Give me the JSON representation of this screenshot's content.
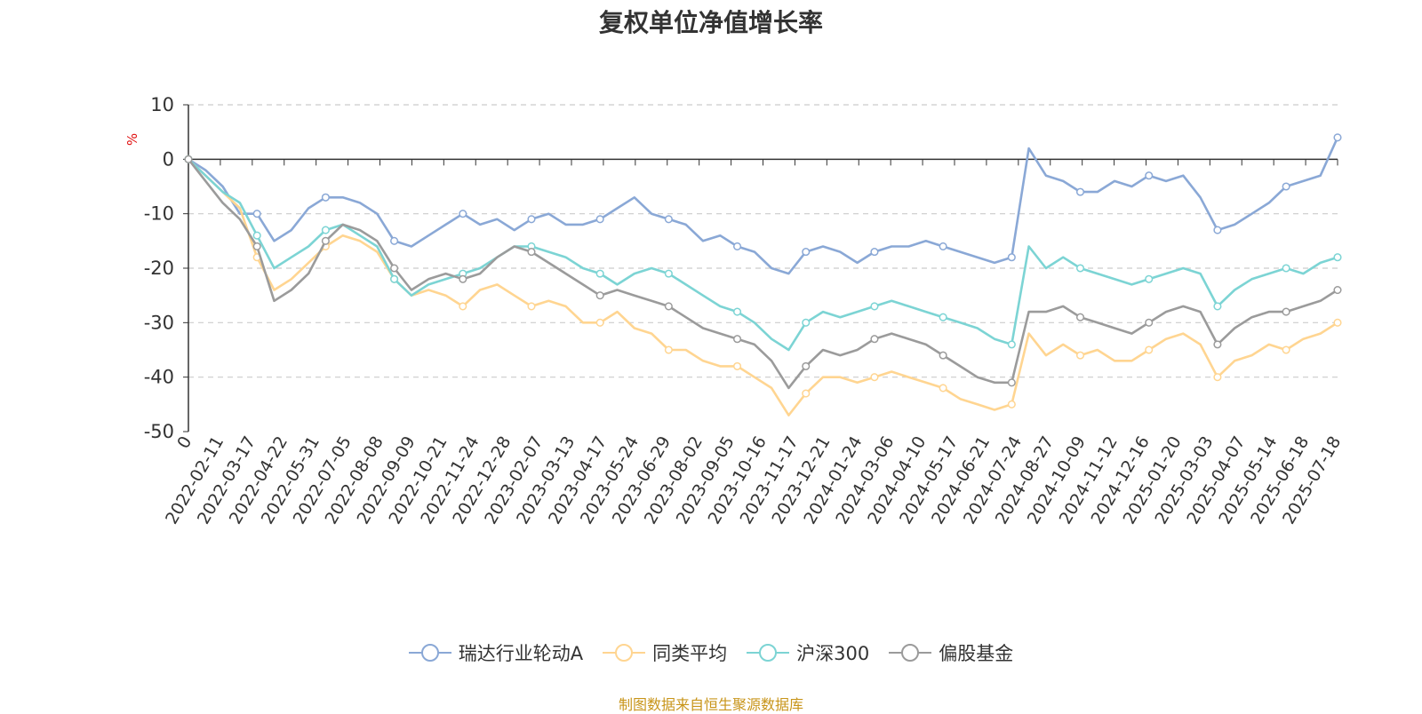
{
  "title": "复权单位净值增长率",
  "source_note": "制图数据来自恒生聚源数据库",
  "chart_data": {
    "type": "line",
    "title": "复权单位净值增长率",
    "ylabel": "%",
    "ylim": [
      -50,
      10
    ],
    "yticks": [
      10,
      0,
      -10,
      -20,
      -30,
      -40,
      -50
    ],
    "grid": true,
    "legend_position": "bottom",
    "x_tick_labels": [
      "0",
      "2022-02-11",
      "2022-03-17",
      "2022-04-22",
      "2022-05-31",
      "2022-07-05",
      "2022-08-08",
      "2022-09-09",
      "2022-10-21",
      "2022-11-24",
      "2022-12-28",
      "2023-02-07",
      "2023-03-13",
      "2023-04-17",
      "2023-05-24",
      "2023-06-29",
      "2023-08-02",
      "2023-09-05",
      "2023-10-16",
      "2023-11-17",
      "2023-12-21",
      "2024-01-24",
      "2024-03-06",
      "2024-04-10",
      "2024-05-17",
      "2024-06-21",
      "2024-07-24",
      "2024-08-27",
      "2024-10-09",
      "2024-11-12",
      "2024-12-16",
      "2025-01-20",
      "2025-03-03",
      "2025-04-07",
      "2025-05-14",
      "2025-06-18",
      "2025-07-18"
    ],
    "series": [
      {
        "name": "瑞达行业轮动A",
        "color": "#8aa8d6",
        "values": [
          0,
          -2,
          -5,
          -10,
          -10,
          -15,
          -13,
          -9,
          -7,
          -7,
          -8,
          -10,
          -15,
          -16,
          -14,
          -12,
          -10,
          -12,
          -11,
          -13,
          -11,
          -10,
          -12,
          -12,
          -11,
          -9,
          -7,
          -10,
          -11,
          -12,
          -15,
          -14,
          -16,
          -17,
          -20,
          -21,
          -17,
          -16,
          -17,
          -19,
          -17,
          -16,
          -16,
          -15,
          -16,
          -17,
          -18,
          -19,
          -18,
          2,
          -3,
          -4,
          -6,
          -6,
          -4,
          -5,
          -3,
          -4,
          -3,
          -7,
          -13,
          -12,
          -10,
          -8,
          -5,
          -4,
          -3,
          4
        ]
      },
      {
        "name": "同类平均",
        "color": "#ffd591",
        "values": [
          0,
          -3,
          -6,
          -9,
          -18,
          -24,
          -22,
          -19,
          -16,
          -14,
          -15,
          -17,
          -22,
          -25,
          -24,
          -25,
          -27,
          -24,
          -23,
          -25,
          -27,
          -26,
          -27,
          -30,
          -30,
          -28,
          -31,
          -32,
          -35,
          -35,
          -37,
          -38,
          -38,
          -40,
          -42,
          -47,
          -43,
          -40,
          -40,
          -41,
          -40,
          -39,
          -40,
          -41,
          -42,
          -44,
          -45,
          -46,
          -45,
          -32,
          -36,
          -34,
          -36,
          -35,
          -37,
          -37,
          -35,
          -33,
          -32,
          -34,
          -40,
          -37,
          -36,
          -34,
          -35,
          -33,
          -32,
          -30
        ]
      },
      {
        "name": "沪深300",
        "color": "#7cd4d4",
        "values": [
          0,
          -3,
          -6,
          -8,
          -14,
          -20,
          -18,
          -16,
          -13,
          -12,
          -14,
          -16,
          -22,
          -25,
          -23,
          -22,
          -21,
          -20,
          -18,
          -16,
          -16,
          -17,
          -18,
          -20,
          -21,
          -23,
          -21,
          -20,
          -21,
          -23,
          -25,
          -27,
          -28,
          -30,
          -33,
          -35,
          -30,
          -28,
          -29,
          -28,
          -27,
          -26,
          -27,
          -28,
          -29,
          -30,
          -31,
          -33,
          -34,
          -16,
          -20,
          -18,
          -20,
          -21,
          -22,
          -23,
          -22,
          -21,
          -20,
          -21,
          -27,
          -24,
          -22,
          -21,
          -20,
          -21,
          -19,
          -18
        ]
      },
      {
        "name": "偏股基金",
        "color": "#9b9b9b",
        "values": [
          0,
          -4,
          -8,
          -11,
          -16,
          -26,
          -24,
          -21,
          -15,
          -12,
          -13,
          -15,
          -20,
          -24,
          -22,
          -21,
          -22,
          -21,
          -18,
          -16,
          -17,
          -19,
          -21,
          -23,
          -25,
          -24,
          -25,
          -26,
          -27,
          -29,
          -31,
          -32,
          -33,
          -34,
          -37,
          -42,
          -38,
          -35,
          -36,
          -35,
          -33,
          -32,
          -33,
          -34,
          -36,
          -38,
          -40,
          -41,
          -41,
          -28,
          -28,
          -27,
          -29,
          -30,
          -31,
          -32,
          -30,
          -28,
          -27,
          -28,
          -34,
          -31,
          -29,
          -28,
          -28,
          -27,
          -26,
          -24
        ]
      }
    ]
  }
}
